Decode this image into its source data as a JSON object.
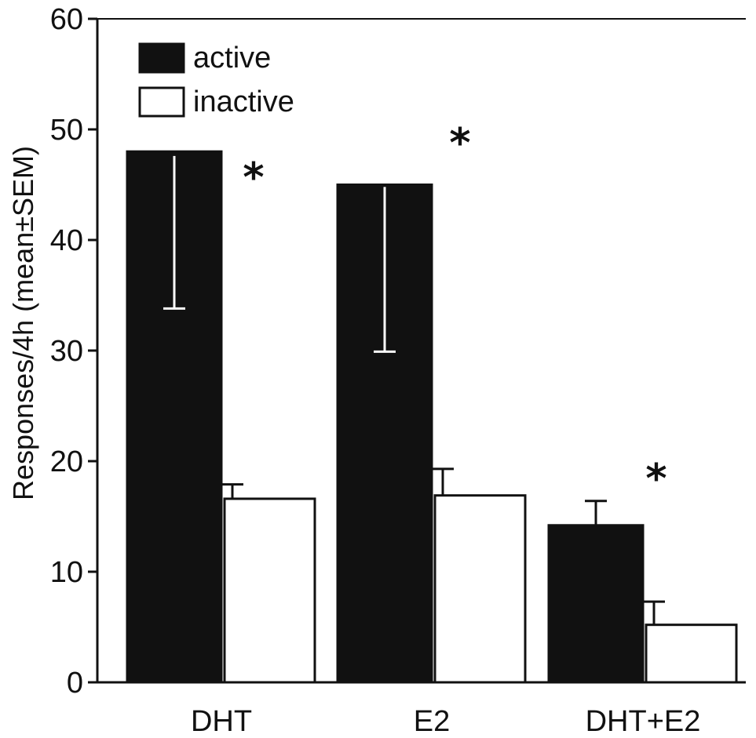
{
  "chart_data": {
    "type": "bar",
    "categories": [
      "DHT",
      "E2",
      "DHT+E2"
    ],
    "series": [
      {
        "name": "active",
        "color": "#111111",
        "values": [
          48,
          45,
          14.2
        ],
        "sem_upper": [
          47.6,
          44.8,
          16.4
        ],
        "sem_lower": [
          33.8,
          29.9,
          14.2
        ]
      },
      {
        "name": "inactive",
        "color": "#ffffff",
        "values": [
          16.6,
          16.9,
          5.2
        ],
        "sem_upper": [
          17.9,
          19.3,
          7.3
        ],
        "sem_lower": [
          16.6,
          16.9,
          5.2
        ]
      }
    ],
    "title": "",
    "xlabel": "",
    "ylabel": "Responses/4h (mean±SEM)",
    "ylim": [
      0,
      60
    ],
    "yticks": [
      "0",
      "10",
      "20",
      "30",
      "40",
      "50",
      "60"
    ],
    "annotations": [
      "*",
      "*",
      "*"
    ],
    "legend_position": "top-left",
    "grid": false
  }
}
